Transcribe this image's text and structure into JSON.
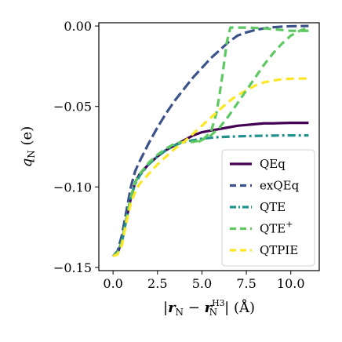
{
  "chart_data": {
    "type": "line",
    "xlabel": "|r_N − r_N^H3| (Å)",
    "xlabel_parts": {
      "open": "|",
      "r1": "r",
      "sub1": "N",
      "minus": " − ",
      "r2": "r",
      "sub2": "N",
      "sup2": "H3",
      "close": "| (Å)"
    },
    "ylabel": "q_N (e)",
    "ylabel_parts": {
      "q": "q",
      "sub": "N",
      "unit": " (e)"
    },
    "xlim": [
      -0.8,
      11.6
    ],
    "ylim": [
      -0.152,
      0.002
    ],
    "xticks": [
      0.0,
      2.5,
      5.0,
      7.5,
      10.0
    ],
    "xtick_labels": [
      "0.0",
      "2.5",
      "5.0",
      "7.5",
      "10.0"
    ],
    "yticks": [
      0.0,
      -0.05,
      -0.1,
      -0.15
    ],
    "ytick_labels": [
      "0.00",
      "−0.05",
      "−0.10",
      "−0.15"
    ],
    "grid": false,
    "legend_position": "lower-right",
    "series": [
      {
        "name": "QEq",
        "label": "QEq",
        "color": "#440154",
        "dash": "solid",
        "x": [
          0.0,
          0.25,
          0.5,
          0.75,
          1.0,
          1.25,
          1.5,
          2.0,
          2.5,
          3.0,
          3.5,
          4.0,
          4.5,
          5.0,
          5.5,
          6.0,
          6.5,
          7.0,
          7.5,
          8.0,
          8.5,
          9.0,
          9.5,
          10.0,
          10.5,
          11.0
        ],
        "y": [
          -0.143,
          -0.141,
          -0.134,
          -0.12,
          -0.107,
          -0.097,
          -0.092,
          -0.086,
          -0.081,
          -0.077,
          -0.074,
          -0.071,
          -0.068,
          -0.066,
          -0.065,
          -0.064,
          -0.063,
          -0.062,
          -0.0615,
          -0.061,
          -0.0605,
          -0.0605,
          -0.0603,
          -0.0602,
          -0.0602,
          -0.0602
        ]
      },
      {
        "name": "exQEq",
        "label": "exQEq",
        "color": "#3b528b",
        "dash": "long-dash",
        "x": [
          0.0,
          0.25,
          0.5,
          0.75,
          1.0,
          1.25,
          1.5,
          2.0,
          2.5,
          3.0,
          3.5,
          4.0,
          4.5,
          5.0,
          5.5,
          6.0,
          6.5,
          7.0,
          7.5,
          8.0,
          8.5,
          9.0,
          9.5,
          10.0,
          10.5,
          11.0
        ],
        "y": [
          -0.143,
          -0.14,
          -0.13,
          -0.115,
          -0.1,
          -0.09,
          -0.084,
          -0.073,
          -0.063,
          -0.054,
          -0.046,
          -0.039,
          -0.032,
          -0.026,
          -0.02,
          -0.015,
          -0.01,
          -0.006,
          -0.004,
          -0.0025,
          -0.0015,
          -0.0008,
          -0.0004,
          -0.0002,
          -0.0001,
          0.0
        ]
      },
      {
        "name": "QTE",
        "label": "QTE",
        "color": "#21918c",
        "dash": "dash-dot",
        "x": [
          0.0,
          0.25,
          0.5,
          0.75,
          1.0,
          1.25,
          1.5,
          2.0,
          2.5,
          3.0,
          3.5,
          4.0,
          4.5,
          5.0,
          5.5,
          6.0,
          6.5,
          7.0,
          7.5,
          8.0,
          8.5,
          9.0,
          9.5,
          10.0,
          10.5,
          11.0
        ],
        "y": [
          -0.143,
          -0.141,
          -0.134,
          -0.12,
          -0.106,
          -0.098,
          -0.093,
          -0.086,
          -0.081,
          -0.077,
          -0.074,
          -0.072,
          -0.071,
          -0.07,
          -0.0695,
          -0.069,
          -0.0688,
          -0.0686,
          -0.0684,
          -0.0683,
          -0.0682,
          -0.0681,
          -0.068,
          -0.068,
          -0.068,
          -0.068
        ]
      },
      {
        "name": "QTE+",
        "label": "QTE",
        "label_sup": "+",
        "color": "#5ec962",
        "dash": "dash",
        "x": [
          0.0,
          0.25,
          0.5,
          0.75,
          1.0,
          1.25,
          1.5,
          2.0,
          2.5,
          3.0,
          3.5,
          4.0,
          4.5,
          5.0,
          5.5,
          5.8,
          6.0,
          6.2,
          6.4,
          6.6,
          7.0,
          7.5,
          8.0,
          8.5,
          9.0,
          9.5,
          10.0,
          10.5,
          11.0
        ],
        "y": [
          -0.143,
          -0.141,
          -0.134,
          -0.12,
          -0.106,
          -0.097,
          -0.092,
          -0.085,
          -0.08,
          -0.076,
          -0.073,
          -0.072,
          -0.072,
          -0.071,
          -0.066,
          -0.055,
          -0.042,
          -0.027,
          -0.01,
          -0.001,
          -0.001,
          -0.001,
          -0.0012,
          -0.0015,
          -0.002,
          -0.0025,
          -0.003,
          -0.003,
          -0.003
        ]
      },
      {
        "name": "QTPIE",
        "label": "QTPIE",
        "color": "#fde725",
        "dash": "dash",
        "x": [
          0.0,
          0.25,
          0.5,
          0.75,
          1.0,
          1.25,
          1.5,
          2.0,
          2.5,
          3.0,
          3.5,
          4.0,
          4.5,
          5.0,
          5.5,
          6.0,
          6.5,
          7.0,
          7.5,
          8.0,
          8.5,
          9.0,
          9.5,
          10.0,
          10.5,
          11.0
        ],
        "y": [
          -0.143,
          -0.142,
          -0.136,
          -0.122,
          -0.11,
          -0.103,
          -0.098,
          -0.092,
          -0.086,
          -0.081,
          -0.076,
          -0.072,
          -0.067,
          -0.062,
          -0.057,
          -0.052,
          -0.047,
          -0.043,
          -0.04,
          -0.037,
          -0.035,
          -0.034,
          -0.033,
          -0.0328,
          -0.0327,
          -0.0326
        ]
      },
      {
        "name": "QTE+ (second branch)",
        "color": "#5ec962",
        "dash": "dash",
        "legend": false,
        "x": [
          4.8,
          5.5,
          6.0,
          6.5,
          7.0,
          7.5,
          8.0,
          8.5,
          9.0,
          9.5,
          10.0,
          10.5,
          11.0
        ],
        "y": [
          -0.072,
          -0.068,
          -0.063,
          -0.056,
          -0.048,
          -0.04,
          -0.032,
          -0.024,
          -0.017,
          -0.011,
          -0.006,
          -0.003,
          -0.001
        ]
      }
    ]
  }
}
